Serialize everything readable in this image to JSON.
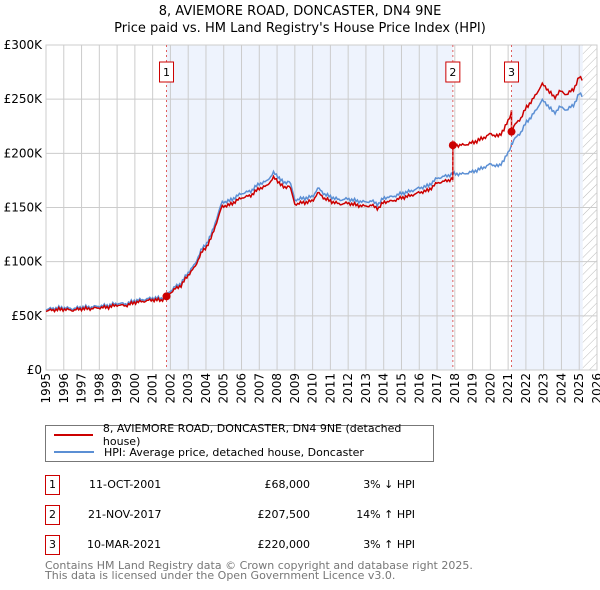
{
  "header": {
    "title": "8, AVIEMORE ROAD, DONCASTER, DN4 9NE",
    "subtitle": "Price paid vs. HM Land Registry's House Price Index (HPI)"
  },
  "chart_data": {
    "type": "line",
    "title": "8, AVIEMORE ROAD, DONCASTER, DN4 9NE",
    "xlim": [
      1995,
      2026
    ],
    "ylim": [
      0,
      300000
    ],
    "x_ticks": [
      "1995",
      "1996",
      "1997",
      "1998",
      "1999",
      "2000",
      "2001",
      "2002",
      "2003",
      "2004",
      "2005",
      "2006",
      "2007",
      "2008",
      "2009",
      "2010",
      "2011",
      "2012",
      "2013",
      "2014",
      "2015",
      "2016",
      "2017",
      "2018",
      "2019",
      "2020",
      "2021",
      "2022",
      "2023",
      "2024",
      "2025",
      "2026"
    ],
    "y_ticks": [
      {
        "v": 0,
        "label": "£0"
      },
      {
        "v": 50000,
        "label": "£50K"
      },
      {
        "v": 100000,
        "label": "£100K"
      },
      {
        "v": 150000,
        "label": "£150K"
      },
      {
        "v": 200000,
        "label": "£200K"
      },
      {
        "v": 250000,
        "label": "£250K"
      },
      {
        "v": 300000,
        "label": "£300K"
      }
    ],
    "forecast_from": 2025.2,
    "colors": {
      "property": "#cc0000",
      "hpi": "#5b8fd4",
      "shade": "#eef3fd"
    },
    "series": [
      {
        "name": "HPI: Average price, detached house, Doncaster",
        "x": [
          1995,
          1995.5,
          1996,
          1996.5,
          1997,
          1997.5,
          1998,
          1998.5,
          1999,
          1999.5,
          2000,
          2000.5,
          2001,
          2001.5,
          2001.8,
          2002.2,
          2002.6,
          2003,
          2003.4,
          2003.7,
          2004,
          2004.3,
          2004.6,
          2004.9,
          2005.3,
          2005.7,
          2006,
          2006.5,
          2007,
          2007.4,
          2007.8,
          2008.1,
          2008.4,
          2008.7,
          2009,
          2009.3,
          2009.7,
          2010,
          2010.3,
          2010.7,
          2011,
          2011.5,
          2012,
          2012.5,
          2013,
          2013.3,
          2013.7,
          2014,
          2014.5,
          2015,
          2015.5,
          2016,
          2016.5,
          2017,
          2017.5,
          2017.9,
          2018.5,
          2019,
          2019.5,
          2020,
          2020.5,
          2021,
          2021.3,
          2021.7,
          2022,
          2022.5,
          2022.9,
          2023.2,
          2023.6,
          2023.9,
          2024.3,
          2024.7,
          2025,
          2025.2
        ],
        "values": [
          56000,
          57000,
          57500,
          56500,
          58000,
          58000,
          59000,
          59500,
          61500,
          61000,
          64000,
          65000,
          66500,
          66000,
          70000,
          76000,
          80000,
          90000,
          98000,
          110000,
          116000,
          125000,
          140000,
          155000,
          156000,
          160000,
          163000,
          165000,
          172000,
          174000,
          182000,
          178000,
          172000,
          175000,
          157000,
          158000,
          159000,
          160000,
          168000,
          162000,
          160000,
          157000,
          158000,
          156000,
          155000,
          156000,
          153000,
          159000,
          160000,
          163000,
          165000,
          168000,
          170000,
          177000,
          179000,
          181000,
          181000,
          183000,
          186000,
          190000,
          188000,
          200000,
          212000,
          219000,
          228000,
          238000,
          249000,
          245000,
          237000,
          243000,
          240000,
          245000,
          255000,
          253000
        ]
      },
      {
        "name": "8, AVIEMORE ROAD, DONCASTER, DN4 9NE (detached house)",
        "derived_from_hpi_and_sales": true
      }
    ],
    "sales": [
      {
        "n": "1",
        "x": 2001.78,
        "price": 68000
      },
      {
        "n": "2",
        "x": 2017.89,
        "price": 207500
      },
      {
        "n": "3",
        "x": 2021.19,
        "price": 220000
      }
    ]
  },
  "legend": {
    "property": "8, AVIEMORE ROAD, DONCASTER, DN4 9NE (detached house)",
    "hpi": "HPI: Average price, detached house, Doncaster"
  },
  "transactions": [
    {
      "num": "1",
      "date": "11-OCT-2001",
      "price": "£68,000",
      "hpi": "3% ↓ HPI"
    },
    {
      "num": "2",
      "date": "21-NOV-2017",
      "price": "£207,500",
      "hpi": "14% ↑ HPI"
    },
    {
      "num": "3",
      "date": "10-MAR-2021",
      "price": "£220,000",
      "hpi": "3% ↑ HPI"
    }
  ],
  "footer": {
    "line1": "Contains HM Land Registry data © Crown copyright and database right 2025.",
    "line2": "This data is licensed under the Open Government Licence v3.0."
  }
}
